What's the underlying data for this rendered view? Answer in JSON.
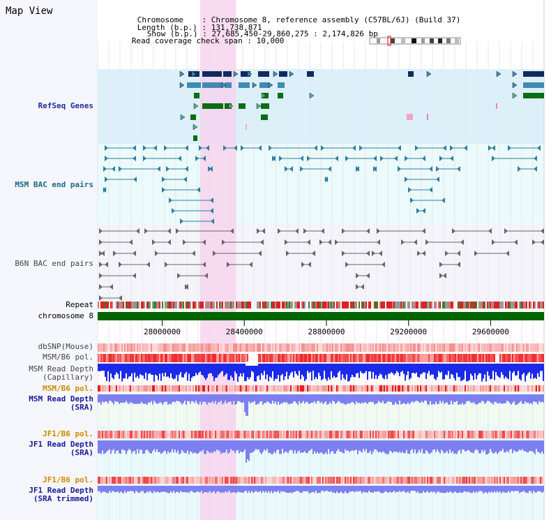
{
  "panel": {
    "title": "Map View"
  },
  "info": {
    "chromosome_key": "Chromosome",
    "chromosome_value": "Chromosome 8, reference assembly (C57BL/6J) (Build 37)",
    "length_key": "Length (b.p.)",
    "length_value": "131,738,871",
    "show_key": "Show (b.p.)",
    "show_value": "27,685,450-29,860,275 : 2,174,826 bp",
    "coverage_key": "Read coverage check span",
    "coverage_value": "10,000"
  },
  "tracks": {
    "refseq": "RefSeq Genes",
    "msm_bac": "MSM BAC end pairs",
    "b6n_bac": "B6N BAC end pairs",
    "repeat": "Repeat",
    "chromosome": "chromosome 8",
    "dbsnp": "dbSNP(Mouse)",
    "msm_b6_pol": "MSM/B6 pol.",
    "msm_read_depth_cap_1": "MSM Read Depth",
    "msm_read_depth_cap_2": "(Capillary)",
    "msm_b6_pol_2": "MSM/B6 pol.",
    "msm_read_depth_sra_1": "MSM Read Depth",
    "msm_read_depth_sra_2": "(SRA)",
    "jf1_b6_pol": "JF1/B6 pol.",
    "jf1_read_depth_sra_1": "JF1 Read Depth",
    "jf1_read_depth_sra_2": "(SRA)",
    "jf1_b6_pol_2": "JF1/B6 pol.",
    "jf1_read_depth_trim_1": "JF1 Read Depth",
    "jf1_read_depth_trim_2": "(SRA trimmed)"
  },
  "axis": {
    "ticks": [
      "28000000",
      "28400000",
      "28800000",
      "29200000",
      "29600000"
    ],
    "tick_positions_bp": [
      28000000,
      28400000,
      28800000,
      29200000,
      29600000
    ],
    "range_bp": [
      27685450,
      29860275
    ],
    "highlight_bp": [
      28185000,
      28360000
    ]
  },
  "colors": {
    "refseq_bg": "#dcf0fa",
    "msm_bac_bg": "#ebfafa",
    "b6n_bac_bg": "#f4f4fa",
    "highlight": "#f7d2ee",
    "gene_navy": "#102a60",
    "gene_steel": "#3f8ab3",
    "gene_green": "#0a6e12",
    "gene_pink": "#f5a0c8",
    "bac_teal": "#2e7f9f",
    "bac_gray": "#666666",
    "chromosome_bar": "#006400",
    "depth_blue": "#1a2ae8",
    "depth_periwinkle": "#7d80f0",
    "pol_red": "#ef3a3a",
    "pol_salmon": "#f7a8a8"
  }
}
